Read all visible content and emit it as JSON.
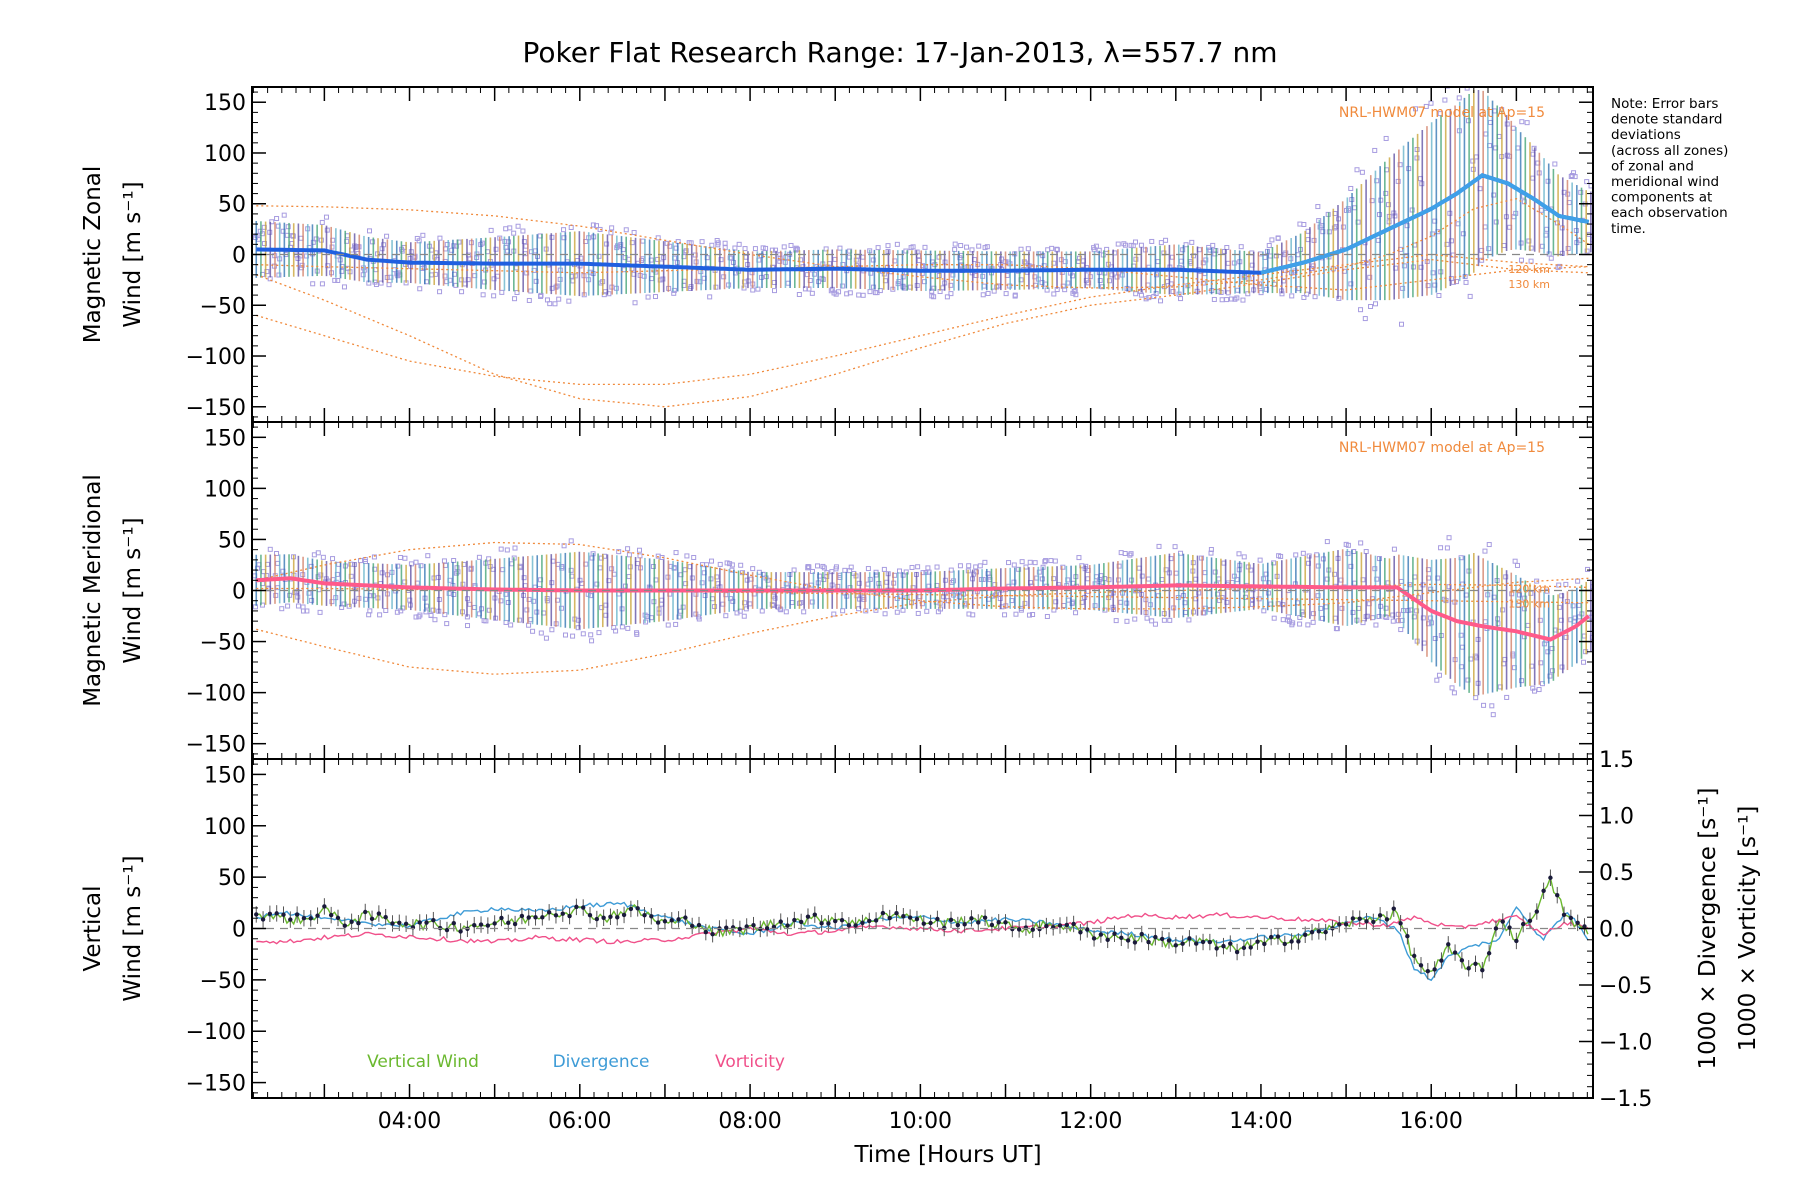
{
  "chart_data": {
    "title": "Poker Flat Research Range: 17-Jan-2013, λ=557.7 nm",
    "note": [
      "Note: Error bars",
      "denote standard",
      "deviations",
      "(across all zones)",
      "of zonal and",
      "meridional wind",
      "components at",
      "each observation",
      "time."
    ],
    "xlabel": "Time [Hours UT]",
    "xlim": [
      2.15,
      17.9
    ],
    "x_ticks": [
      {
        "value": 4,
        "label": "04:00"
      },
      {
        "value": 6,
        "label": "06:00"
      },
      {
        "value": 8,
        "label": "08:00"
      },
      {
        "value": 10,
        "label": "10:00"
      },
      {
        "value": 12,
        "label": "12:00"
      },
      {
        "value": 14,
        "label": "14:00"
      },
      {
        "value": 16,
        "label": "16:00"
      }
    ],
    "y_ticks": [
      "150",
      "100",
      "50",
      "0",
      "−50",
      "−100",
      "−150"
    ],
    "y_tick_values": [
      150,
      100,
      50,
      0,
      -50,
      -100,
      -150
    ],
    "colors": {
      "zonal_mean": "#1f5fe0",
      "zonal_mean_late": "#3fa0e8",
      "meridional_mean": "#ff5a8a",
      "model": "#f08a3c",
      "scatter": "#a79ce0",
      "vertical": "#6ab82e",
      "divergence": "#3d9bd6",
      "vorticity": "#f0508a",
      "dark": "#1a1a3a"
    },
    "panels": [
      {
        "id": "zonal",
        "type": "scatter",
        "ylabel_line1": "Magnetic Zonal",
        "ylabel_line2": "Wind [m s⁻¹]",
        "ylim": [
          -165,
          165
        ],
        "model_label": "NRL-HWM07 model at Ap=15",
        "alt_labels": [
          "120 km",
          "130 km"
        ],
        "mean_series": {
          "name": "",
          "x": [
            2.2,
            3.0,
            3.5,
            4.0,
            5.0,
            6.0,
            7.0,
            8.0,
            9.0,
            10.0,
            11.0,
            12.0,
            13.0,
            14.0,
            14.5,
            15.0,
            15.5,
            16.0,
            16.3,
            16.6,
            16.9,
            17.2,
            17.5,
            17.85
          ],
          "y": [
            5,
            4,
            -5,
            -8,
            -9,
            -9,
            -12,
            -15,
            -14,
            -16,
            -16,
            -15,
            -15,
            -18,
            -8,
            5,
            25,
            45,
            60,
            78,
            70,
            55,
            38,
            32
          ]
        },
        "spread": {
          "x": [
            2.2,
            3.0,
            4.0,
            6.0,
            8.0,
            10.0,
            12.0,
            13.0,
            14.0,
            14.5,
            15.0,
            15.5,
            16.0,
            16.5,
            17.0,
            17.5,
            17.85
          ],
          "half_width": [
            28,
            25,
            20,
            32,
            18,
            20,
            18,
            25,
            20,
            30,
            50,
            70,
            85,
            90,
            60,
            40,
            30
          ]
        },
        "model_curves": [
          {
            "x": [
              2.2,
              3.0,
              4.0,
              5.0,
              6.0,
              7.0,
              8.0,
              9.0,
              10.0,
              11.0,
              12.0,
              13.0,
              14.0,
              15.0,
              15.5,
              16.0,
              16.5,
              17.0,
              17.5,
              17.85
            ],
            "y": [
              48,
              47,
              44,
              38,
              28,
              14,
              0,
              -12,
              -22,
              -30,
              -33,
              -32,
              -25,
              -12,
              0,
              18,
              45,
              55,
              30,
              10
            ]
          },
          {
            "x": [
              2.2,
              3.0,
              4.0,
              5.0,
              6.0,
              7.0,
              8.0,
              9.0,
              10.0,
              11.0,
              12.0,
              13.0,
              14.0,
              15.0,
              16.0,
              17.0,
              17.85
            ],
            "y": [
              -60,
              -80,
              -105,
              -120,
              -128,
              -128,
              -118,
              -100,
              -80,
              -60,
              -42,
              -30,
              -20,
              -10,
              0,
              -8,
              -12
            ]
          },
          {
            "x": [
              2.2,
              3.0,
              4.0,
              5.0,
              6.0,
              7.0,
              8.0,
              9.0,
              10.0,
              11.0,
              12.0,
              13.0,
              14.0,
              15.0,
              16.0,
              17.0,
              17.85
            ],
            "y": [
              -10,
              -12,
              -14,
              -16,
              -18,
              -16,
              -14,
              -12,
              -10,
              -10,
              -14,
              -22,
              -30,
              -35,
              -25,
              -15,
              -12
            ]
          },
          {
            "x": [
              2.2,
              3.0,
              4.0,
              5.0,
              6.0,
              7.0,
              8.0,
              9.0,
              10.0,
              11.0,
              12.0,
              13.0,
              14.0,
              15.0,
              16.0,
              17.0,
              17.85
            ],
            "y": [
              -20,
              -45,
              -80,
              -118,
              -142,
              -150,
              -140,
              -118,
              -92,
              -68,
              -50,
              -40,
              -28,
              -15,
              -5,
              -15,
              -18
            ]
          }
        ]
      },
      {
        "id": "meridional",
        "type": "scatter",
        "ylabel_line1": "Magnetic Meridional",
        "ylabel_line2": "Wind [m s⁻¹]",
        "ylim": [
          -165,
          165
        ],
        "model_label": "NRL-HWM07 model at Ap=15",
        "alt_labels": [
          "120 km",
          "130 km"
        ],
        "mean_series": {
          "name": "",
          "x": [
            2.2,
            2.6,
            3.0,
            4.0,
            5.0,
            6.0,
            7.0,
            8.0,
            9.0,
            10.0,
            11.0,
            12.0,
            13.0,
            14.0,
            15.0,
            15.6,
            16.0,
            16.3,
            16.6,
            17.0,
            17.4,
            17.7,
            17.85
          ],
          "y": [
            10,
            12,
            7,
            3,
            1,
            0,
            0,
            0,
            0,
            0,
            2,
            3,
            5,
            4,
            3,
            3,
            -20,
            -30,
            -35,
            -40,
            -48,
            -35,
            -25
          ]
        },
        "spread": {
          "x": [
            2.2,
            3.0,
            4.0,
            6.0,
            7.0,
            8.0,
            10.0,
            12.0,
            13.0,
            14.0,
            15.0,
            15.5,
            16.0,
            16.5,
            17.0,
            17.5,
            17.85
          ],
          "half_width": [
            25,
            22,
            22,
            38,
            30,
            18,
            18,
            22,
            32,
            22,
            38,
            28,
            50,
            70,
            55,
            40,
            35
          ]
        },
        "model_curves": [
          {
            "x": [
              2.2,
              3.0,
              4.0,
              5.0,
              6.0,
              7.0,
              8.0,
              9.0,
              10.0,
              11.0,
              12.0,
              13.0,
              14.0,
              15.0,
              16.0,
              17.0,
              17.85
            ],
            "y": [
              10,
              25,
              40,
              47,
              45,
              32,
              15,
              0,
              -10,
              -16,
              -18,
              -18,
              -16,
              -12,
              -2,
              8,
              12
            ]
          },
          {
            "x": [
              2.2,
              3.0,
              4.0,
              5.0,
              6.0,
              7.0,
              8.0,
              9.0,
              10.0,
              11.0,
              12.0,
              13.0,
              14.0,
              15.0,
              16.0,
              17.0,
              17.85
            ],
            "y": [
              -38,
              -55,
              -75,
              -82,
              -78,
              -62,
              -42,
              -25,
              -12,
              -5,
              -2,
              0,
              2,
              4,
              6,
              5,
              3
            ]
          },
          {
            "x": [
              2.2,
              3.0,
              4.0,
              6.0,
              8.0,
              10.0,
              12.0,
              14.0,
              16.0,
              17.85
            ],
            "y": [
              2,
              2,
              1,
              0,
              -2,
              -4,
              -6,
              -8,
              -10,
              -12
            ]
          }
        ]
      },
      {
        "id": "vertical",
        "type": "line",
        "ylabel_line1": "Vertical",
        "ylabel_line2": "Wind [m s⁻¹]",
        "ylim": [
          -165,
          165
        ],
        "right_axis": {
          "ylim": [
            -1.5,
            1.5
          ],
          "ticks": [
            "1.5",
            "1.0",
            "0.5",
            "0.0",
            "−0.5",
            "−1.0",
            "−1.5"
          ],
          "tick_values": [
            1.5,
            1.0,
            0.5,
            0.0,
            -0.5,
            -1.0,
            -1.5
          ],
          "label_divergence": "1000 × Divergence [s⁻¹]",
          "label_vorticity": "1000 × Vorticity [s⁻¹]"
        },
        "legend": [
          "Vertical Wind",
          "Divergence",
          "Vorticity"
        ],
        "series": [
          {
            "name": "Vertical Wind",
            "x": [
              2.2,
              2.5,
              2.8,
              3.0,
              3.2,
              3.5,
              3.8,
              4.0,
              4.3,
              4.6,
              5.0,
              5.3,
              5.6,
              6.0,
              6.3,
              6.6,
              7.0,
              7.3,
              7.6,
              8.0,
              8.3,
              8.6,
              9.0,
              9.3,
              9.6,
              10.0,
              10.3,
              10.6,
              11.0,
              11.3,
              11.6,
              12.0,
              12.3,
              12.6,
              13.0,
              13.3,
              13.6,
              14.0,
              14.3,
              14.6,
              15.0,
              15.3,
              15.6,
              15.8,
              16.0,
              16.2,
              16.4,
              16.6,
              16.8,
              17.0,
              17.2,
              17.4,
              17.6,
              17.85
            ],
            "y": [
              15,
              10,
              8,
              20,
              5,
              12,
              8,
              5,
              3,
              2,
              5,
              8,
              15,
              18,
              10,
              20,
              5,
              8,
              -5,
              0,
              5,
              8,
              10,
              5,
              15,
              8,
              5,
              10,
              2,
              0,
              5,
              -5,
              -8,
              -10,
              -15,
              -12,
              -20,
              -15,
              -10,
              -5,
              5,
              10,
              15,
              -30,
              -45,
              -20,
              -35,
              -40,
              10,
              -10,
              15,
              45,
              10,
              -5
            ]
          },
          {
            "name": "Divergence",
            "x": [
              2.2,
              2.5,
              3.0,
              3.5,
              4.0,
              4.5,
              5.0,
              5.5,
              6.0,
              6.5,
              7.0,
              7.5,
              8.0,
              8.5,
              9.0,
              9.5,
              10.0,
              10.5,
              11.0,
              11.5,
              12.0,
              12.5,
              13.0,
              13.5,
              14.0,
              14.5,
              15.0,
              15.3,
              15.6,
              15.8,
              16.0,
              16.2,
              16.5,
              16.8,
              17.0,
              17.3,
              17.6,
              17.85
            ],
            "y": [
              0.1,
              0.15,
              0.08,
              0.05,
              0.02,
              0.12,
              0.18,
              0.15,
              0.2,
              0.22,
              0.1,
              0.0,
              -0.05,
              0.05,
              0.0,
              0.08,
              0.1,
              0.05,
              0.08,
              0.05,
              -0.02,
              -0.05,
              -0.1,
              -0.12,
              -0.08,
              -0.05,
              0.05,
              0.1,
              0.0,
              -0.35,
              -0.45,
              -0.25,
              -0.15,
              -0.1,
              0.2,
              -0.1,
              0.15,
              -0.1
            ]
          },
          {
            "name": "Vorticity",
            "x": [
              2.2,
              2.5,
              3.0,
              3.5,
              4.0,
              4.5,
              5.0,
              5.5,
              6.0,
              6.5,
              7.0,
              7.5,
              8.0,
              8.5,
              9.0,
              9.5,
              10.0,
              10.5,
              11.0,
              11.5,
              12.0,
              12.5,
              13.0,
              13.5,
              14.0,
              14.5,
              15.0,
              15.5,
              15.8,
              16.0,
              16.3,
              16.6,
              17.0,
              17.3,
              17.6,
              17.85
            ],
            "y": [
              -0.1,
              -0.12,
              -0.08,
              -0.05,
              -0.07,
              -0.1,
              -0.12,
              -0.08,
              -0.1,
              -0.12,
              -0.1,
              -0.05,
              0.0,
              -0.05,
              -0.02,
              0.02,
              0.0,
              -0.02,
              0.0,
              0.02,
              0.05,
              0.12,
              0.1,
              0.12,
              0.1,
              0.08,
              0.05,
              0.03,
              0.1,
              0.05,
              0.0,
              0.05,
              0.1,
              -0.05,
              0.05,
              0.0
            ]
          }
        ]
      }
    ]
  }
}
